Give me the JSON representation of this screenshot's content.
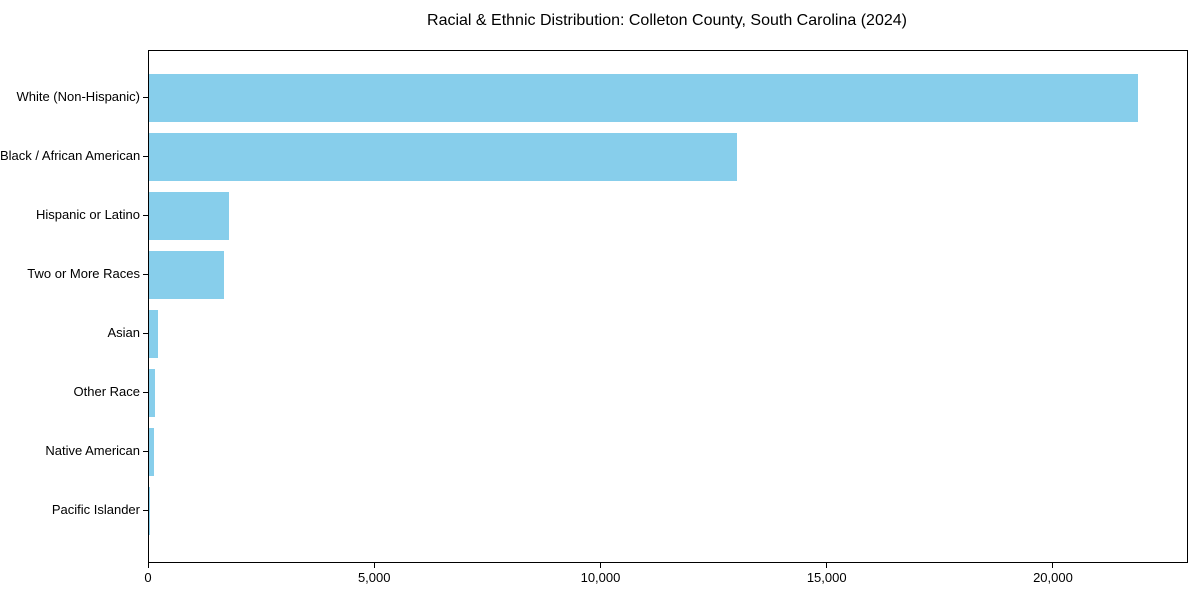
{
  "chart_data": {
    "type": "bar",
    "orientation": "horizontal",
    "title": "Racial & Ethnic Distribution: Colleton County, South Carolina (2024)",
    "categories": [
      "White (Non-Hispanic)",
      "Black / African American",
      "Hispanic or Latino",
      "Two or More Races",
      "Asian",
      "Other Race",
      "Native American",
      "Pacific Islander"
    ],
    "values": [
      21850,
      13000,
      1760,
      1650,
      195,
      130,
      105,
      15
    ],
    "bar_color": "#87CEEB",
    "frame_color": "#000000",
    "background_color": "#ffffff",
    "xlabel": "",
    "ylabel": "",
    "xlim": [
      0,
      22940
    ],
    "x_ticks": {
      "values": [
        0,
        5000,
        10000,
        15000,
        20000
      ],
      "labels": [
        "0",
        "5,000",
        "10,000",
        "15,000",
        "20,000"
      ]
    },
    "grid": false,
    "legend": "none"
  }
}
